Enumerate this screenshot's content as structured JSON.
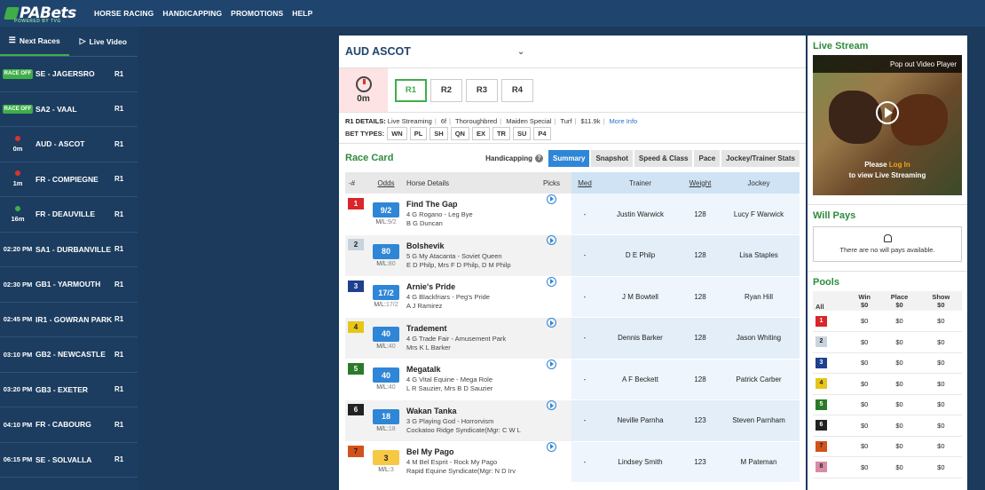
{
  "brand": {
    "name": "PABets",
    "tagline": "POWERED BY TVG"
  },
  "topnav": [
    "HORSE RACING",
    "HANDICAPPING",
    "PROMOTIONS",
    "HELP"
  ],
  "sidebar": {
    "tabs": [
      {
        "label": "Next Races",
        "icon": "list-icon"
      },
      {
        "label": "Live Video",
        "icon": "video-icon"
      }
    ],
    "races": [
      {
        "status_type": "off",
        "status": "RACE OFF",
        "track": "SE - JAGERSRO",
        "race": "R1"
      },
      {
        "status_type": "off",
        "status": "RACE OFF",
        "track": "SA2 - VAAL",
        "race": "R1"
      },
      {
        "status_type": "dot",
        "dot_color": "#d9342b",
        "status": "0m",
        "track": "AUD - ASCOT",
        "race": "R1"
      },
      {
        "status_type": "dot",
        "dot_color": "#d9342b",
        "status": "1m",
        "track": "FR - COMPIEGNE",
        "race": "R1"
      },
      {
        "status_type": "dot",
        "dot_color": "#3fae49",
        "status": "16m",
        "track": "FR - DEAUVILLE",
        "race": "R1"
      },
      {
        "status_type": "time",
        "status": "02:20 PM",
        "track": "SA1 - DURBANVILLE",
        "race": "R1"
      },
      {
        "status_type": "time",
        "status": "02:30 PM",
        "track": "GB1 - YARMOUTH",
        "race": "R1"
      },
      {
        "status_type": "time",
        "status": "02:45 PM",
        "track": "IR1 - GOWRAN PARK",
        "race": "R1"
      },
      {
        "status_type": "time",
        "status": "03:10 PM",
        "track": "GB2 - NEWCASTLE",
        "race": "R1"
      },
      {
        "status_type": "time",
        "status": "03:20 PM",
        "track": "GB3 - EXETER",
        "race": "R1"
      },
      {
        "status_type": "time",
        "status": "04:10 PM",
        "track": "FR - CABOURG",
        "race": "R1"
      },
      {
        "status_type": "time",
        "status": "06:15 PM",
        "track": "SE - SOLVALLA",
        "race": "R1"
      }
    ]
  },
  "main": {
    "track_name": "AUD ASCOT",
    "mtp": "0m",
    "races": [
      "R1",
      "R2",
      "R3",
      "R4"
    ],
    "details_label": "R1 DETAILS:",
    "details": [
      "Live Streaming",
      "6f",
      "Thoroughbred",
      "Maiden Special",
      "Turf",
      "$11.9k"
    ],
    "more_info": "More Info",
    "bet_types_label": "BET TYPES:",
    "bet_types": [
      "WN",
      "PL",
      "SH",
      "QN",
      "EX",
      "TR",
      "SU",
      "P4"
    ],
    "race_card_title": "Race Card",
    "handicapping_label": "Handicapping",
    "hc_tabs": [
      "Summary",
      "Snapshot",
      "Speed & Class",
      "Pace",
      "Jockey/Trainer Stats"
    ],
    "columns": {
      "num": "-#",
      "odds": "Odds",
      "horse": "Horse Details",
      "picks": "Picks",
      "med": "Med",
      "trainer": "Trainer",
      "weight": "Weight",
      "jockey": "Jockey"
    },
    "runners": [
      {
        "num": "1",
        "pp_color": "#d9262b",
        "pp_text": "#ffffff",
        "odds": "9/2",
        "odds_style": "blue",
        "ml": "9/2",
        "name": "Find The Gap",
        "line1": "4 G Rogano - Leg Bye",
        "line2": "B G Duncan",
        "med": "-",
        "trainer": "Justin Warwick",
        "weight": "128",
        "jockey": "Lucy F Warwick"
      },
      {
        "num": "2",
        "pp_color": "#c9d3dc",
        "pp_text": "#222222",
        "odds": "80",
        "odds_style": "blue",
        "ml": "80",
        "name": "Bolshevik",
        "line1": "5 G My Atacanta - Soviet Queen",
        "line2": "E D Philp, Mrs F D Philp, D M Philp",
        "med": "-",
        "trainer": "D E Philp",
        "weight": "128",
        "jockey": "Lisa Staples"
      },
      {
        "num": "3",
        "pp_color": "#1f3f8f",
        "pp_text": "#ffffff",
        "odds": "17/2",
        "odds_style": "blue",
        "ml": "17/2",
        "name": "Arnie's Pride",
        "line1": "4 G Blackfriars - Peg's Pride",
        "line2": "A J Ramirez",
        "med": "-",
        "trainer": "J M Bowtell",
        "weight": "128",
        "jockey": "Ryan Hill"
      },
      {
        "num": "4",
        "pp_color": "#e6c619",
        "pp_text": "#222222",
        "odds": "40",
        "odds_style": "blue",
        "ml": "40",
        "name": "Tradement",
        "line1": "4 G Trade Fair - Amusement Park",
        "line2": "Mrs K L Barker",
        "med": "-",
        "trainer": "Dennis Barker",
        "weight": "128",
        "jockey": "Jason Whiting"
      },
      {
        "num": "5",
        "pp_color": "#2b7a2b",
        "pp_text": "#ffffff",
        "odds": "40",
        "odds_style": "blue",
        "ml": "40",
        "name": "Megatalk",
        "line1": "4 G Vital Equine - Mega Role",
        "line2": "L R Sauzier, Mrs B D Sauzier",
        "med": "-",
        "trainer": "A F Beckett",
        "weight": "128",
        "jockey": "Patrick Carber"
      },
      {
        "num": "6",
        "pp_color": "#222222",
        "pp_text": "#ffffff",
        "odds": "18",
        "odds_style": "blue",
        "ml": "18",
        "name": "Wakan Tanka",
        "line1": "3 G Playing God - Horrorvism",
        "line2": "Cockatoo Ridge Syndicate(Mgr: C W L",
        "med": "-",
        "trainer": "Neville Parnha",
        "weight": "123",
        "jockey": "Steven Parnham"
      },
      {
        "num": "7",
        "pp_color": "#d2521c",
        "pp_text": "#222222",
        "odds": "3",
        "odds_style": "yellow",
        "ml": "3",
        "name": "Bel My Pago",
        "line1": "4 M Bel Esprit - Rock My Pago",
        "line2": "Rapid Equine Syndicate(Mgr: N D Irv",
        "med": "-",
        "trainer": "Lindsey Smith",
        "weight": "123",
        "jockey": "M Pateman"
      }
    ]
  },
  "right": {
    "live_stream_title": "Live Stream",
    "popout": "Pop out Video Player",
    "please": "Please",
    "login": "Log In",
    "view": "to view Live Streaming",
    "will_pays_title": "Will Pays",
    "will_pays_empty": "There are no will pays available.",
    "pools_title": "Pools",
    "pool_cols": [
      "All",
      "Win",
      "Place",
      "Show"
    ],
    "pool_totals": [
      "$0",
      "$0",
      "$0"
    ],
    "pools": [
      {
        "num": "1",
        "color": "#d9262b",
        "text": "#ffffff",
        "win": "$0",
        "place": "$0",
        "show": "$0"
      },
      {
        "num": "2",
        "color": "#c9d3dc",
        "text": "#222222",
        "win": "$0",
        "place": "$0",
        "show": "$0"
      },
      {
        "num": "3",
        "color": "#1f3f8f",
        "text": "#ffffff",
        "win": "$0",
        "place": "$0",
        "show": "$0"
      },
      {
        "num": "4",
        "color": "#e6c619",
        "text": "#222222",
        "win": "$0",
        "place": "$0",
        "show": "$0"
      },
      {
        "num": "5",
        "color": "#2b7a2b",
        "text": "#ffffff",
        "win": "$0",
        "place": "$0",
        "show": "$0"
      },
      {
        "num": "6",
        "color": "#222222",
        "text": "#ffffff",
        "win": "$0",
        "place": "$0",
        "show": "$0"
      },
      {
        "num": "7",
        "color": "#d2521c",
        "text": "#222222",
        "win": "$0",
        "place": "$0",
        "show": "$0"
      },
      {
        "num": "8",
        "color": "#d98aa6",
        "text": "#222222",
        "win": "$0",
        "place": "$0",
        "show": "$0"
      }
    ]
  }
}
